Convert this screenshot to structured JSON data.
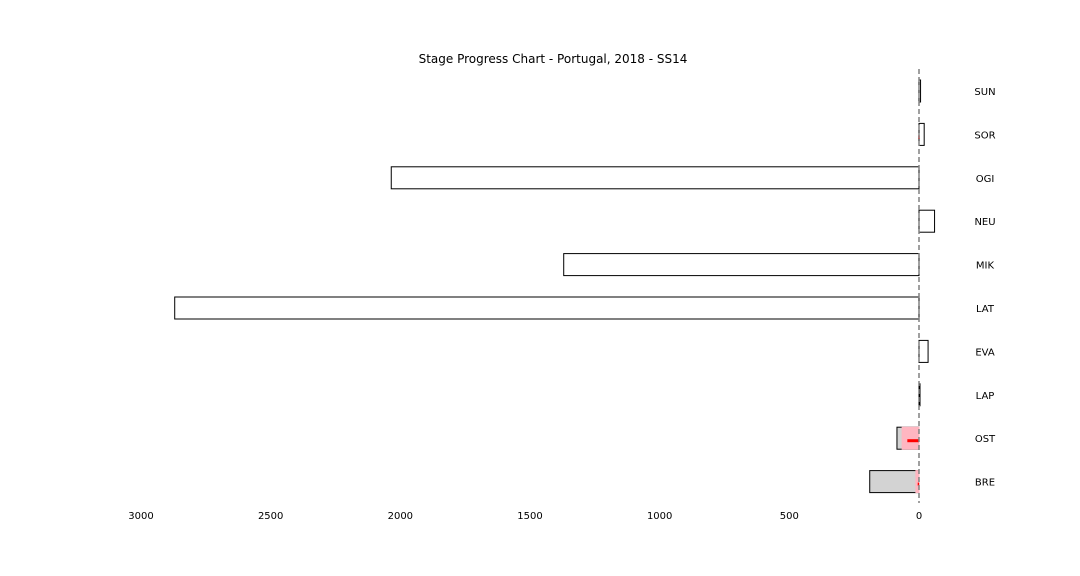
{
  "chart_data": {
    "type": "bar",
    "orientation": "horizontal",
    "title": "Stage Progress Chart - Portugal, 2018 - SS14",
    "xlabel": "",
    "ylabel": "",
    "xlim": [
      3000,
      0
    ],
    "x_axis_reversed": true,
    "x_ticks": [
      3000,
      2500,
      2000,
      1500,
      1000,
      500,
      0
    ],
    "categories_top_to_bottom": [
      "SUN",
      "SOR",
      "OGI",
      "NEU",
      "MIK",
      "LAT",
      "EVA",
      "LAP",
      "OST",
      "BRE"
    ],
    "reference_line": {
      "x": 0,
      "style": "dashed",
      "color": "#808080"
    },
    "series": [
      {
        "values": [
          -6,
          -20,
          2035,
          -60,
          1370,
          2870,
          -35,
          0,
          85,
          190
        ],
        "fill": "#ffffff",
        "stroke": "#000000"
      },
      {
        "values": [
          0,
          0,
          0,
          0,
          0,
          0,
          0,
          0,
          65,
          12
        ],
        "fill": "#ffb6c1",
        "stroke": "#ffb6c1"
      },
      {
        "values": [
          0,
          3,
          0,
          0,
          0,
          0,
          0,
          0,
          45,
          5
        ],
        "fill": "#ff0000",
        "stroke": "#ff0000",
        "style": "marker"
      }
    ],
    "neutral_fill": "#d3d3d3",
    "grid": false,
    "legend": "none"
  }
}
